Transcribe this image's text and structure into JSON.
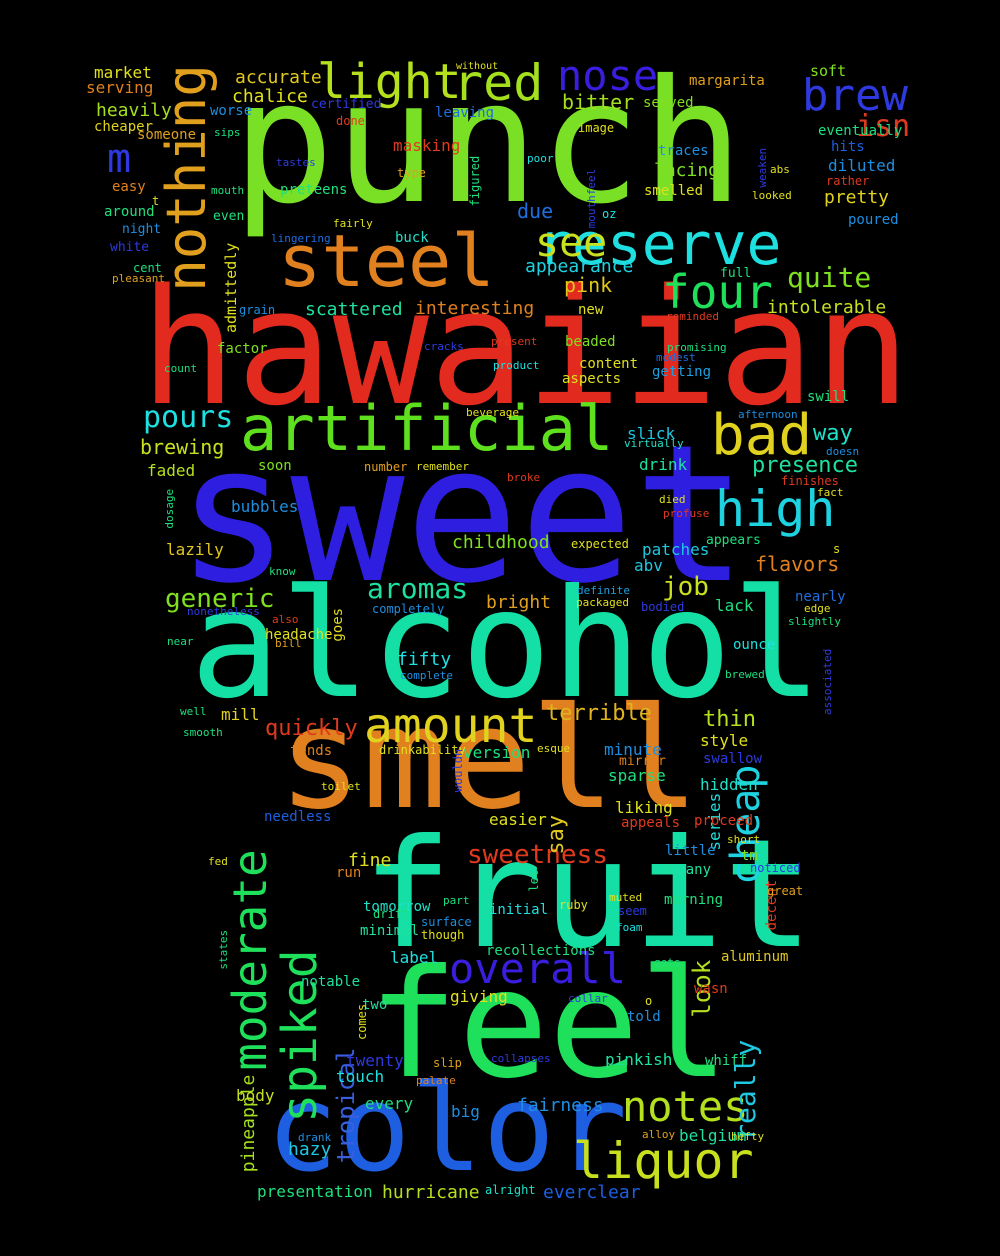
{
  "words": [
    {
      "text": "punch",
      "color": "#79e026"
    },
    {
      "text": "hawaiian",
      "color": "#e32a1e"
    },
    {
      "text": "sweet",
      "color": "#2e1ee0"
    },
    {
      "text": "alcohol",
      "color": "#14e0a5"
    },
    {
      "text": "smell",
      "color": "#e0801e"
    },
    {
      "text": "fruit",
      "color": "#14e0a5"
    },
    {
      "text": "feel",
      "color": "#1ee05a"
    },
    {
      "text": "color",
      "color": "#1e5ee0"
    },
    {
      "text": "artificial",
      "color": "#5ee01e"
    },
    {
      "text": "steel",
      "color": "#e0801e"
    },
    {
      "text": "reserve",
      "color": "#1ee0e0"
    },
    {
      "text": "nothing",
      "color": "#e0a01e"
    },
    {
      "text": "amount",
      "color": "#e0d21e"
    },
    {
      "text": "bad",
      "color": "#e0d21e"
    },
    {
      "text": "high",
      "color": "#1ed2e0"
    },
    {
      "text": "spiked",
      "color": "#1ee05a"
    },
    {
      "text": "moderate",
      "color": "#1ee05a"
    },
    {
      "text": "overall",
      "color": "#3a1ee0"
    },
    {
      "text": "notes",
      "color": "#b5e01e"
    },
    {
      "text": "liquor",
      "color": "#c8e01e"
    },
    {
      "text": "light",
      "color": "#b5e01e"
    },
    {
      "text": "red",
      "color": "#a5e01e"
    },
    {
      "text": "nose",
      "color": "#3a1ee0"
    },
    {
      "text": "brew",
      "color": "#2e3ae0"
    },
    {
      "text": "see",
      "color": "#c8e01e"
    },
    {
      "text": "four",
      "color": "#1ee05a"
    },
    {
      "text": "cheap",
      "color": "#1ed2e0"
    },
    {
      "text": "isn",
      "color": "#e03a1e"
    },
    {
      "text": "m",
      "color": "#2e3ae0"
    },
    {
      "text": "pours",
      "color": "#1ee0e0"
    },
    {
      "text": "quite",
      "color": "#7ee01e"
    },
    {
      "text": "aromas",
      "color": "#1ee0a0"
    },
    {
      "text": "generic",
      "color": "#7ee01e"
    },
    {
      "text": "job",
      "color": "#c8e01e"
    },
    {
      "text": "sweetness",
      "color": "#e03a1e"
    },
    {
      "text": "really",
      "color": "#1ec8e0"
    },
    {
      "text": "tropical",
      "color": "#3a5ee0"
    },
    {
      "text": "pineapple",
      "color": "#a5e01e"
    },
    {
      "text": "presence",
      "color": "#1ee0a0"
    },
    {
      "text": "flavors",
      "color": "#e0801e"
    },
    {
      "text": "terrible",
      "color": "#e0b41e"
    },
    {
      "text": "quickly",
      "color": "#e03a1e"
    },
    {
      "text": "thin",
      "color": "#b5e01e"
    },
    {
      "text": "look",
      "color": "#b5e01e"
    },
    {
      "text": "say",
      "color": "#e0c81e"
    },
    {
      "text": "brewing",
      "color": "#c8e01e"
    },
    {
      "text": "way",
      "color": "#1ee0c8"
    },
    {
      "text": "pink",
      "color": "#e0c81e"
    },
    {
      "text": "due",
      "color": "#1e6ee0"
    },
    {
      "text": "appearance",
      "color": "#1ed2e0"
    },
    {
      "text": "bitter",
      "color": "#a5e01e"
    },
    {
      "text": "intolerable",
      "color": "#c8e01e"
    },
    {
      "text": "pretty",
      "color": "#e0d21e"
    },
    {
      "text": "lacing",
      "color": "#7ee01e"
    },
    {
      "text": "accurate",
      "color": "#e0c81e"
    },
    {
      "text": "chalice",
      "color": "#e0e01e"
    },
    {
      "text": "heavily",
      "color": "#a5e01e"
    },
    {
      "text": "scattered",
      "color": "#1ee0a0"
    },
    {
      "text": "interesting",
      "color": "#e0801e"
    },
    {
      "text": "mill",
      "color": "#e0d21e"
    },
    {
      "text": "fifty",
      "color": "#1ee0e0"
    },
    {
      "text": "bright",
      "color": "#e0a01e"
    },
    {
      "text": "fine",
      "color": "#e0e01e"
    },
    {
      "text": "fairness",
      "color": "#1e8ee0"
    },
    {
      "text": "hazy",
      "color": "#1ec8e0"
    },
    {
      "text": "everclear",
      "color": "#1e5ee0"
    },
    {
      "text": "hurricane",
      "color": "#b5e01e"
    },
    {
      "text": "presentation",
      "color": "#1ee07e"
    },
    {
      "text": "pinkish",
      "color": "#1ee0a0"
    },
    {
      "text": "belgium",
      "color": "#1ee0a0"
    },
    {
      "text": "touch",
      "color": "#1ee0e0"
    },
    {
      "text": "every",
      "color": "#1ee07e"
    },
    {
      "text": "big",
      "color": "#1e8ee0"
    },
    {
      "text": "body",
      "color": "#c8e01e"
    },
    {
      "text": "lazily",
      "color": "#e0c81e"
    },
    {
      "text": "bubbles",
      "color": "#1e8ee0"
    },
    {
      "text": "faded",
      "color": "#b5e01e"
    },
    {
      "text": "soon",
      "color": "#7ee01e"
    },
    {
      "text": "childhood",
      "color": "#7ee01e"
    },
    {
      "text": "patches",
      "color": "#1ec8e0"
    },
    {
      "text": "abv",
      "color": "#1ec8e0"
    },
    {
      "text": "slick",
      "color": "#1ec8e0"
    },
    {
      "text": "drink",
      "color": "#1ee0a0"
    },
    {
      "text": "lack",
      "color": "#1ee07e"
    },
    {
      "text": "style",
      "color": "#e0e01e"
    },
    {
      "text": "minute",
      "color": "#1e8ee0"
    },
    {
      "text": "sparse",
      "color": "#1ee07e"
    },
    {
      "text": "hidden",
      "color": "#1ee0c8"
    },
    {
      "text": "liking",
      "color": "#e0e01e"
    },
    {
      "text": "easier",
      "color": "#e0e01e"
    },
    {
      "text": "series",
      "color": "#1ee0e0"
    },
    {
      "text": "tm",
      "color": "#7ee01e"
    },
    {
      "text": "notable",
      "color": "#1ee0a0"
    },
    {
      "text": "label",
      "color": "#1ee0e0"
    },
    {
      "text": "giving",
      "color": "#e0e01e"
    },
    {
      "text": "recollections",
      "color": "#1ee07e"
    },
    {
      "text": "initial",
      "color": "#1ee0e0"
    },
    {
      "text": "tends",
      "color": "#e0801e"
    },
    {
      "text": "version",
      "color": "#1ee07e"
    },
    {
      "text": "needless",
      "color": "#1e5ee0"
    },
    {
      "text": "appeals",
      "color": "#e03a1e"
    },
    {
      "text": "proceed",
      "color": "#e03a1e"
    },
    {
      "text": "market",
      "color": "#e0e01e"
    },
    {
      "text": "serving",
      "color": "#e0801e"
    },
    {
      "text": "cheaper",
      "color": "#e0d21e"
    },
    {
      "text": "someone",
      "color": "#e0a01e"
    },
    {
      "text": "worse",
      "color": "#1e8ee0"
    },
    {
      "text": "certified",
      "color": "#2e3ae0"
    },
    {
      "text": "leaving",
      "color": "#1e6ee0"
    },
    {
      "text": "served",
      "color": "#7ee01e"
    },
    {
      "text": "margarita",
      "color": "#e0a01e"
    },
    {
      "text": "soft",
      "color": "#7ee01e"
    },
    {
      "text": "eventually",
      "color": "#1ee07e"
    },
    {
      "text": "hits",
      "color": "#1e5ee0"
    },
    {
      "text": "diluted",
      "color": "#1e8ee0"
    },
    {
      "text": "rather",
      "color": "#e03a1e"
    },
    {
      "text": "poured",
      "color": "#1e8ee0"
    },
    {
      "text": "traces",
      "color": "#1e8ee0"
    },
    {
      "text": "smelled",
      "color": "#e0e01e"
    },
    {
      "text": "masking",
      "color": "#e03a1e"
    },
    {
      "text": "easy",
      "color": "#e0801e"
    },
    {
      "text": "around",
      "color": "#1ee07e"
    },
    {
      "text": "night",
      "color": "#1e8ee0"
    },
    {
      "text": "white",
      "color": "#2e3ae0"
    },
    {
      "text": "preteens",
      "color": "#1ee07e"
    },
    {
      "text": "buck",
      "color": "#1ee0c8"
    },
    {
      "text": "admittedly",
      "color": "#e0e01e"
    },
    {
      "text": "factor",
      "color": "#7ee01e"
    },
    {
      "text": "beaded",
      "color": "#7ee01e"
    },
    {
      "text": "content",
      "color": "#e0e01e"
    },
    {
      "text": "aspects",
      "color": "#e0e01e"
    },
    {
      "text": "getting",
      "color": "#1ea0e0"
    },
    {
      "text": "swill",
      "color": "#1ee07e"
    },
    {
      "text": "full",
      "color": "#1ee07e"
    },
    {
      "text": "headache",
      "color": "#e0e01e"
    },
    {
      "text": "ounce",
      "color": "#1ee0e0"
    },
    {
      "text": "goes",
      "color": "#e0e01e"
    },
    {
      "text": "nearly",
      "color": "#1e6ee0"
    },
    {
      "text": "mirror",
      "color": "#e0801e"
    },
    {
      "text": "swallow",
      "color": "#2e3ae0"
    },
    {
      "text": "little",
      "color": "#1e8ee0"
    },
    {
      "text": "company",
      "color": "#1ee0a0"
    },
    {
      "text": "tomorrow",
      "color": "#1ee0c8"
    },
    {
      "text": "morning",
      "color": "#1ee07e"
    },
    {
      "text": "decent",
      "color": "#e03a1e"
    },
    {
      "text": "aluminum",
      "color": "#e0c81e"
    },
    {
      "text": "wasn",
      "color": "#e03a1e"
    },
    {
      "text": "told",
      "color": "#1e8ee0"
    },
    {
      "text": "twenty",
      "color": "#2e3ae0"
    },
    {
      "text": "whiff",
      "color": "#1ee07e"
    },
    {
      "text": "two",
      "color": "#1ee0a0"
    },
    {
      "text": "new",
      "color": "#e0e01e"
    },
    {
      "text": "minimal",
      "color": "#1ee0a0"
    },
    {
      "text": "run",
      "color": "#e0801e"
    },
    {
      "text": "aimed",
      "color": "#1e8ee0"
    },
    {
      "text": "away",
      "color": "#1ee07e"
    }
  ],
  "small_words": [
    {
      "text": "without",
      "color": "#e0e01e"
    },
    {
      "text": "sips",
      "color": "#1ee07e"
    },
    {
      "text": "done",
      "color": "#e03a1e"
    },
    {
      "text": "image",
      "color": "#e0e01e"
    },
    {
      "text": "poor",
      "color": "#1ee0e0"
    },
    {
      "text": "tastes",
      "color": "#2e3ae0"
    },
    {
      "text": "type",
      "color": "#e0a01e"
    },
    {
      "text": "figured",
      "color": "#1ee07e"
    },
    {
      "text": "mouthfeel",
      "color": "#2e3ae0"
    },
    {
      "text": "weaken",
      "color": "#2e3ae0"
    },
    {
      "text": "abs",
      "color": "#e0e01e"
    },
    {
      "text": "looked",
      "color": "#e0e01e"
    },
    {
      "text": "t",
      "color": "#e0e01e"
    },
    {
      "text": "mouth",
      "color": "#1ee07e"
    },
    {
      "text": "even",
      "color": "#1ee07e"
    },
    {
      "text": "fairly",
      "color": "#e0e01e"
    },
    {
      "text": "oz",
      "color": "#1ee0e0"
    },
    {
      "text": "lingering",
      "color": "#1e6ee0"
    },
    {
      "text": "cent",
      "color": "#1ee07e"
    },
    {
      "text": "pleasant",
      "color": "#e0a01e"
    },
    {
      "text": "grain",
      "color": "#1e8ee0"
    },
    {
      "text": "reminded",
      "color": "#e03a1e"
    },
    {
      "text": "cracks",
      "color": "#2e3ae0"
    },
    {
      "text": "present",
      "color": "#e03a1e"
    },
    {
      "text": "product",
      "color": "#1ee0e0"
    },
    {
      "text": "promising",
      "color": "#1ee07e"
    },
    {
      "text": "modest",
      "color": "#1e6ee0"
    },
    {
      "text": "count",
      "color": "#1ee07e"
    },
    {
      "text": "beverage",
      "color": "#e0e01e"
    },
    {
      "text": "afternoon",
      "color": "#1e8ee0"
    },
    {
      "text": "virtually",
      "color": "#1ee0c8"
    },
    {
      "text": "doesn",
      "color": "#1e8ee0"
    },
    {
      "text": "remember",
      "color": "#e0e01e"
    },
    {
      "text": "number",
      "color": "#e0a01e"
    },
    {
      "text": "broke",
      "color": "#e03a1e"
    },
    {
      "text": "finishes",
      "color": "#e03a1e"
    },
    {
      "text": "fact",
      "color": "#e0e01e"
    },
    {
      "text": "dosage",
      "color": "#1ee07e"
    },
    {
      "text": "died",
      "color": "#e0e01e"
    },
    {
      "text": "profuse",
      "color": "#e03a1e"
    },
    {
      "text": "expected",
      "color": "#e0e01e"
    },
    {
      "text": "appears",
      "color": "#1ee07e"
    },
    {
      "text": "s",
      "color": "#e0e01e"
    },
    {
      "text": "know",
      "color": "#1ee07e"
    },
    {
      "text": "nonetheless",
      "color": "#2e3ae0"
    },
    {
      "text": "completely",
      "color": "#1e8ee0"
    },
    {
      "text": "definite",
      "color": "#1ea0e0"
    },
    {
      "text": "packaged",
      "color": "#e0e01e"
    },
    {
      "text": "bodied",
      "color": "#2e3ae0"
    },
    {
      "text": "also",
      "color": "#e03a1e"
    },
    {
      "text": "edge",
      "color": "#e0e01e"
    },
    {
      "text": "slightly",
      "color": "#1ee07e"
    },
    {
      "text": "near",
      "color": "#1ee07e"
    },
    {
      "text": "bill",
      "color": "#e0a01e"
    },
    {
      "text": "complete",
      "color": "#1e8ee0"
    },
    {
      "text": "brewed",
      "color": "#1ee07e"
    },
    {
      "text": "associated",
      "color": "#2e3ae0"
    },
    {
      "text": "well",
      "color": "#1ee07e"
    },
    {
      "text": "smooth",
      "color": "#1ee07e"
    },
    {
      "text": "drinkability",
      "color": "#e0e01e"
    },
    {
      "text": "esque",
      "color": "#e0e01e"
    },
    {
      "text": "wouldn",
      "color": "#2e3ae0"
    },
    {
      "text": "toilet",
      "color": "#e0e01e"
    },
    {
      "text": "short",
      "color": "#e0e01e"
    },
    {
      "text": "noticed",
      "color": "#2e3ae0"
    },
    {
      "text": "fed",
      "color": "#e0e01e"
    },
    {
      "text": "great",
      "color": "#e0a01e"
    },
    {
      "text": "let",
      "color": "#1ee07e"
    },
    {
      "text": "part",
      "color": "#1ee07e"
    },
    {
      "text": "ruby",
      "color": "#e0e01e"
    },
    {
      "text": "muted",
      "color": "#e0e01e"
    },
    {
      "text": "drift",
      "color": "#1ee07e"
    },
    {
      "text": "surface",
      "color": "#1e8ee0"
    },
    {
      "text": "though",
      "color": "#e0e01e"
    },
    {
      "text": "seem",
      "color": "#2e3ae0"
    },
    {
      "text": "foam",
      "color": "#1ee0e0"
    },
    {
      "text": "states",
      "color": "#1ee07e"
    },
    {
      "text": "gets",
      "color": "#1ee07e"
    },
    {
      "text": "comes",
      "color": "#e0e01e"
    },
    {
      "text": "collar",
      "color": "#2e3ae0"
    },
    {
      "text": "o",
      "color": "#e0e01e"
    },
    {
      "text": "slip",
      "color": "#e0a01e"
    },
    {
      "text": "collapses",
      "color": "#2e3ae0"
    },
    {
      "text": "palate",
      "color": "#e0801e"
    },
    {
      "text": "drank",
      "color": "#1e8ee0"
    },
    {
      "text": "alloy",
      "color": "#e0a01e"
    },
    {
      "text": "hefty",
      "color": "#e0e01e"
    },
    {
      "text": "alright",
      "color": "#1ee0c8"
    }
  ]
}
